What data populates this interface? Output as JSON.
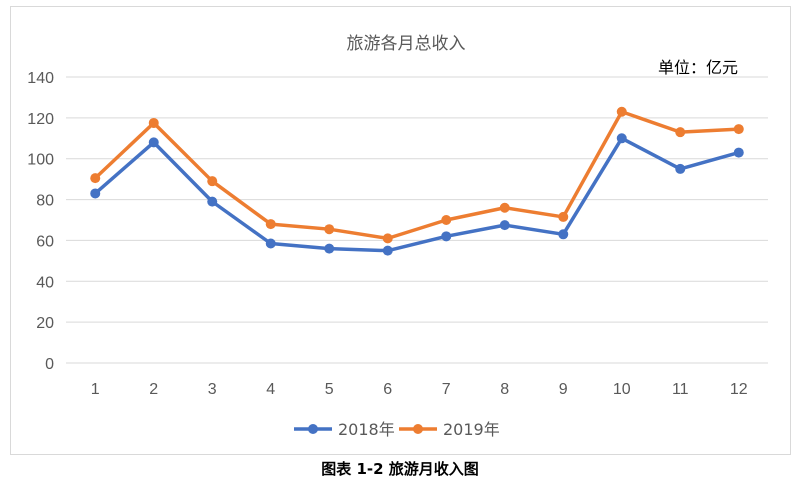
{
  "caption": "图表 1-2 旅游月收入图",
  "chart_data": {
    "type": "line",
    "title": "旅游各月总收入",
    "unit_label": "单位：亿元",
    "categories": [
      "1",
      "2",
      "3",
      "4",
      "5",
      "6",
      "7",
      "8",
      "9",
      "10",
      "11",
      "12"
    ],
    "series": [
      {
        "name": "2018年",
        "color": "#4472c4",
        "values": [
          83,
          108,
          79,
          58.5,
          56,
          55,
          62,
          67.5,
          63,
          110,
          95,
          103
        ]
      },
      {
        "name": "2019年",
        "color": "#ed7d31",
        "values": [
          90.5,
          117.5,
          89,
          68,
          65.5,
          61,
          70,
          76,
          71.5,
          123,
          113,
          114.5
        ]
      }
    ],
    "ylim": [
      0,
      140
    ],
    "yticks": [
      0,
      20,
      40,
      60,
      80,
      100,
      120,
      140
    ],
    "grid": true,
    "legend_position": "bottom"
  }
}
